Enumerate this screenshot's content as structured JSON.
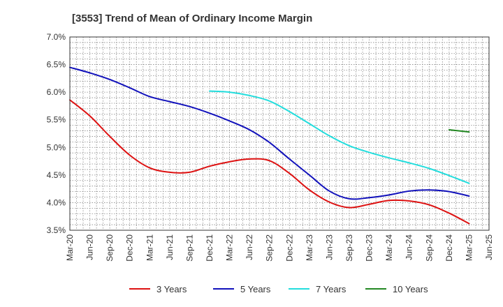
{
  "chart_data": {
    "type": "line",
    "title": "[3553]  Trend of Mean of Ordinary Income Margin",
    "xlabel": "",
    "ylabel": "",
    "ylim": [
      3.5,
      7.0
    ],
    "y_ticks": [
      "7.0%",
      "6.5%",
      "6.0%",
      "5.5%",
      "5.0%",
      "4.5%",
      "4.0%",
      "3.5%"
    ],
    "x_tick_labels": [
      "Mar-20",
      "Jun-20",
      "Sep-20",
      "Dec-20",
      "Mar-21",
      "Jun-21",
      "Sep-21",
      "Dec-21",
      "Mar-22",
      "Jun-22",
      "Sep-22",
      "Dec-22",
      "Mar-23",
      "Jun-23",
      "Sep-23",
      "Dec-23",
      "Mar-24",
      "Jun-24",
      "Sep-24",
      "Dec-24",
      "Mar-25",
      "Jun-25"
    ],
    "grid": true,
    "legend_position": "bottom",
    "series": [
      {
        "name": "3 Years",
        "color": "#dd1111",
        "points": [
          [
            "Mar-20",
            5.86
          ],
          [
            "Jun-20",
            5.57
          ],
          [
            "Sep-20",
            5.2
          ],
          [
            "Dec-20",
            4.86
          ],
          [
            "Mar-21",
            4.63
          ],
          [
            "Jun-21",
            4.55
          ],
          [
            "Sep-21",
            4.55
          ],
          [
            "Dec-21",
            4.66
          ],
          [
            "Mar-22",
            4.74
          ],
          [
            "Jun-22",
            4.79
          ],
          [
            "Sep-22",
            4.76
          ],
          [
            "Dec-22",
            4.53
          ],
          [
            "Mar-23",
            4.23
          ],
          [
            "Jun-23",
            4.01
          ],
          [
            "Sep-23",
            3.91
          ],
          [
            "Dec-23",
            3.97
          ],
          [
            "Mar-24",
            4.04
          ],
          [
            "Jun-24",
            4.03
          ],
          [
            "Sep-24",
            3.96
          ],
          [
            "Dec-24",
            3.81
          ],
          [
            "Mar-25",
            3.62
          ]
        ]
      },
      {
        "name": "5 Years",
        "color": "#1111bb",
        "points": [
          [
            "Mar-20",
            6.45
          ],
          [
            "Jun-20",
            6.35
          ],
          [
            "Sep-20",
            6.23
          ],
          [
            "Dec-20",
            6.08
          ],
          [
            "Mar-21",
            5.92
          ],
          [
            "Jun-21",
            5.83
          ],
          [
            "Sep-21",
            5.74
          ],
          [
            "Dec-21",
            5.62
          ],
          [
            "Mar-22",
            5.48
          ],
          [
            "Jun-22",
            5.32
          ],
          [
            "Sep-22",
            5.09
          ],
          [
            "Dec-22",
            4.79
          ],
          [
            "Mar-23",
            4.5
          ],
          [
            "Jun-23",
            4.21
          ],
          [
            "Sep-23",
            4.07
          ],
          [
            "Dec-23",
            4.09
          ],
          [
            "Mar-24",
            4.14
          ],
          [
            "Jun-24",
            4.21
          ],
          [
            "Sep-24",
            4.23
          ],
          [
            "Dec-24",
            4.2
          ],
          [
            "Mar-25",
            4.12
          ]
        ]
      },
      {
        "name": "7 Years",
        "color": "#22dddd",
        "points": [
          [
            "Dec-21",
            6.02
          ],
          [
            "Mar-22",
            6.0
          ],
          [
            "Jun-22",
            5.94
          ],
          [
            "Sep-22",
            5.84
          ],
          [
            "Dec-22",
            5.65
          ],
          [
            "Mar-23",
            5.43
          ],
          [
            "Jun-23",
            5.21
          ],
          [
            "Sep-23",
            5.03
          ],
          [
            "Dec-23",
            4.91
          ],
          [
            "Mar-24",
            4.81
          ],
          [
            "Jun-24",
            4.72
          ],
          [
            "Sep-24",
            4.62
          ],
          [
            "Dec-24",
            4.49
          ],
          [
            "Mar-25",
            4.35
          ]
        ]
      },
      {
        "name": "10 Years",
        "color": "#228822",
        "points": [
          [
            "Dec-24",
            5.32
          ],
          [
            "Mar-25",
            5.28
          ]
        ]
      }
    ]
  }
}
